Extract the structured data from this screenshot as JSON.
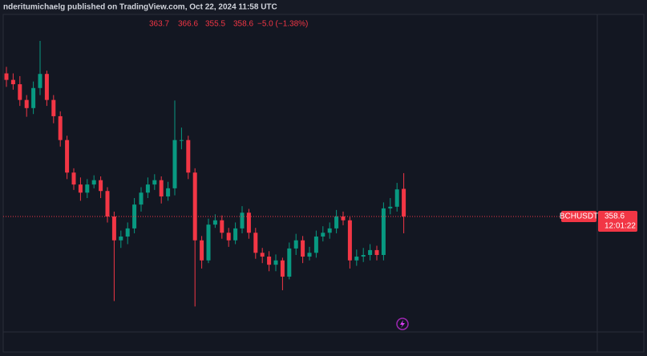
{
  "chart_data": {
    "type": "candlestick",
    "attribution": "nderitumichaelg published on TradingView.com, Oct 22, 2024 11:58 UTC",
    "symbol": "BCHUSDT",
    "change_label": "−5.0 (−1.38%)",
    "countdown": "12:01:22",
    "up_color": "#089981",
    "down_color": "#f23645",
    "ylim": [
      337.3,
      397.8
    ],
    "open": [
      385.0,
      383.8,
      383.0,
      380.1,
      378.6,
      382.3,
      384.9,
      380.1,
      377.1,
      372.7,
      366.7,
      364.5,
      363.0,
      364.5,
      365.3,
      363.3,
      358.6,
      354.2,
      354.9,
      356.4,
      360.8,
      363.0,
      364.5,
      365.3,
      362.3,
      363.8,
      372.7,
      372.7,
      366.7,
      354.2,
      350.5,
      357.1,
      357.9,
      355.6,
      354.2,
      356.4,
      359.3,
      355.6,
      351.9,
      351.2,
      349.7,
      350.5,
      347.5,
      352.7,
      354.2,
      351.2,
      351.9,
      354.9,
      355.6,
      356.4,
      358.6,
      357.9,
      350.5,
      351.2,
      351.5,
      352.4,
      351.5,
      360.1,
      360.4,
      363.7
    ],
    "high": [
      386.2,
      385.0,
      384.5,
      381.0,
      383.5,
      391.0,
      385.5,
      381.0,
      378.0,
      373.5,
      367.5,
      365.8,
      365.5,
      366.2,
      366.0,
      364.0,
      359.5,
      356.0,
      357.5,
      362.0,
      364.0,
      365.8,
      366.4,
      366.0,
      365.0,
      380.0,
      375.0,
      373.5,
      367.5,
      355.0,
      358.2,
      359.0,
      358.8,
      356.5,
      357.5,
      360.5,
      360.0,
      356.5,
      352.8,
      352.2,
      351.6,
      351.0,
      353.8,
      355.4,
      355.0,
      353.0,
      356.0,
      356.8,
      357.5,
      359.8,
      359.5,
      358.5,
      352.5,
      352.8,
      353.5,
      353.2,
      361.2,
      362.0,
      364.8,
      366.6
    ],
    "low": [
      382.5,
      382.0,
      379.0,
      377.0,
      377.5,
      381.0,
      379.0,
      375.8,
      371.5,
      365.5,
      363.5,
      361.5,
      362.0,
      363.8,
      362.0,
      357.5,
      343.0,
      352.8,
      353.5,
      355.5,
      359.5,
      362.0,
      363.5,
      361.0,
      361.5,
      362.5,
      371.0,
      365.5,
      342.0,
      349.0,
      350.0,
      356.5,
      354.5,
      353.0,
      353.5,
      355.5,
      354.5,
      350.8,
      350.0,
      348.5,
      348.5,
      345.0,
      347.0,
      351.5,
      350.0,
      350.5,
      351.0,
      354.0,
      354.5,
      355.5,
      357.0,
      349.0,
      349.5,
      350.2,
      350.5,
      350.5,
      350.5,
      359.0,
      359.5,
      355.5
    ],
    "close": [
      383.8,
      383.0,
      380.1,
      378.6,
      382.3,
      384.9,
      380.1,
      377.1,
      372.7,
      366.7,
      364.5,
      363.0,
      364.5,
      365.3,
      363.3,
      358.6,
      354.2,
      354.9,
      356.4,
      360.8,
      363.0,
      364.5,
      365.3,
      362.3,
      363.8,
      372.7,
      372.7,
      366.7,
      354.2,
      350.5,
      357.1,
      357.9,
      355.6,
      354.2,
      356.4,
      359.3,
      355.6,
      351.9,
      351.2,
      349.7,
      350.5,
      347.5,
      352.7,
      354.2,
      351.2,
      351.9,
      354.9,
      355.6,
      356.4,
      358.6,
      357.9,
      350.5,
      351.2,
      351.5,
      352.4,
      351.5,
      360.1,
      360.4,
      363.6,
      358.6
    ]
  }
}
